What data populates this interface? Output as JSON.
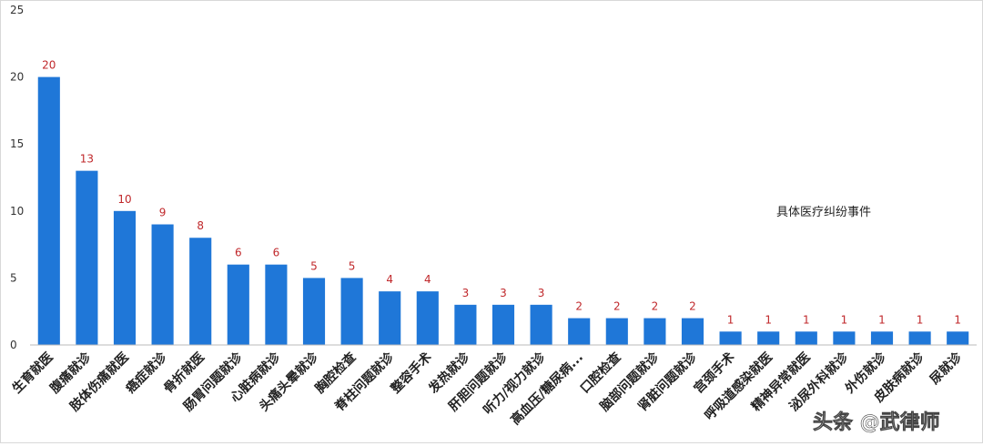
{
  "chart_data": {
    "type": "bar",
    "categories": [
      "生育就医",
      "腹痛就诊",
      "肢体伤痛就医",
      "癌症就诊",
      "骨折就医",
      "肠胃问题就诊",
      "心脏病就诊",
      "头痛头晕就诊",
      "胸腔检查",
      "脊柱问题就诊",
      "整容手术",
      "发热就诊",
      "肝胆问题就诊",
      "听力/视力就诊",
      "高血压/糖尿病...",
      "口腔检查",
      "脑部问题就诊",
      "肾脏问题就诊",
      "宫颈手术",
      "呼吸道感染就医",
      "精神异常就医",
      "泌尿外科就诊",
      "外伤就诊",
      "皮肤病就诊",
      "尿就诊"
    ],
    "series": [
      {
        "name": "具体医疗纠纷事件",
        "values": [
          20,
          13,
          10,
          9,
          8,
          6,
          6,
          5,
          5,
          4,
          4,
          3,
          3,
          3,
          2,
          2,
          2,
          2,
          1,
          1,
          1,
          1,
          1,
          1,
          1
        ],
        "color": "#1f77d8"
      }
    ],
    "title": "",
    "xlabel": "",
    "ylabel": "",
    "ylim": [
      0,
      25
    ],
    "yticks": [
      "0",
      "5",
      "10",
      "15",
      "20",
      "25"
    ],
    "grid": false,
    "legend_position": "right",
    "label_color": "#c0282b"
  },
  "legend_label": "具体医疗纠纷事件",
  "watermark": "头条 @武律师"
}
